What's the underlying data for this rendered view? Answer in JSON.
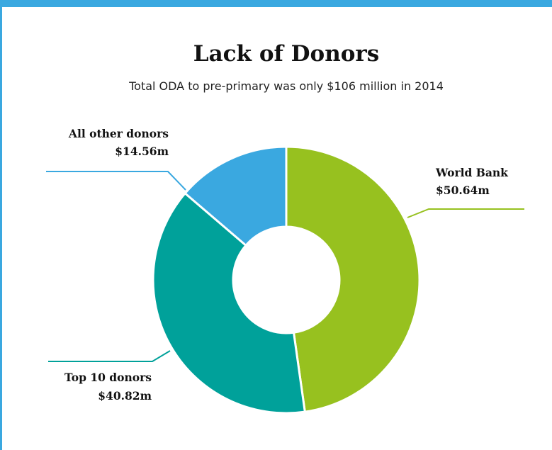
{
  "chart_data": {
    "type": "pie",
    "title": "Lack of Donors",
    "subtitle": "Total ODA to pre-primary was only $106 million in 2014",
    "categories": [
      "World Bank",
      "Top 10 donors",
      "All other donors"
    ],
    "values": [
      50.64,
      40.82,
      14.56
    ],
    "value_labels": [
      "$50.64m",
      "$40.82m",
      "$14.56m"
    ],
    "colors": [
      "#97c11f",
      "#00a19a",
      "#3aa8e0"
    ]
  }
}
